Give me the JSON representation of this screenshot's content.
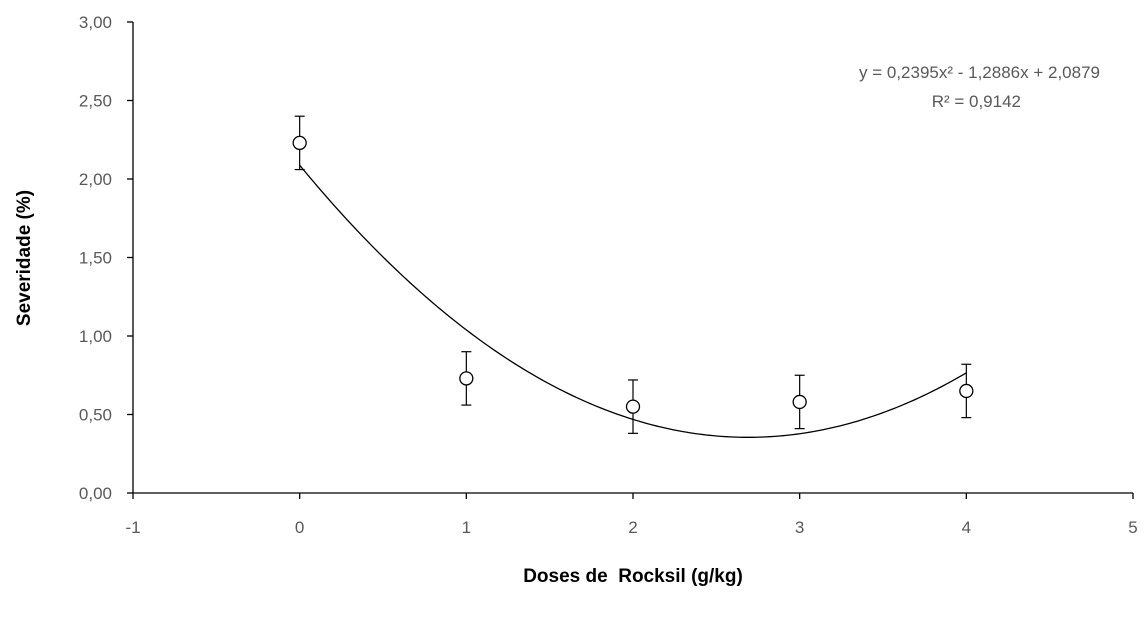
{
  "chart_data": {
    "type": "scatter",
    "xlabel": "Doses de  Rocksil (g/kg)",
    "ylabel": "Severidade (%)",
    "xlim": [
      -1,
      5
    ],
    "ylim": [
      0,
      3
    ],
    "x_ticks": [
      "-1",
      "0",
      "1",
      "2",
      "3",
      "4",
      "5"
    ],
    "y_ticks": [
      "0,00",
      "0,50",
      "1,00",
      "1,50",
      "2,00",
      "2,50",
      "3,00"
    ],
    "grid": false,
    "series": [
      {
        "x": [
          0,
          1,
          2,
          3,
          4
        ],
        "y": [
          2.23,
          0.73,
          0.55,
          0.58,
          0.65
        ],
        "error": [
          0.17,
          0.17,
          0.17,
          0.17,
          0.17
        ],
        "marker": "open-circle"
      }
    ],
    "trendline": {
      "type": "polynomial",
      "coefficients": [
        0.2395,
        -1.2886,
        2.0879
      ],
      "x_range": [
        0,
        4
      ],
      "equation": "y = 0,2395x² - 1,2886x + 2,0879",
      "r2": "R² = 0,9142"
    },
    "colors": {
      "axis": "#000000",
      "marker": "#000000",
      "trendline": "#000000",
      "text": "#595959"
    }
  }
}
